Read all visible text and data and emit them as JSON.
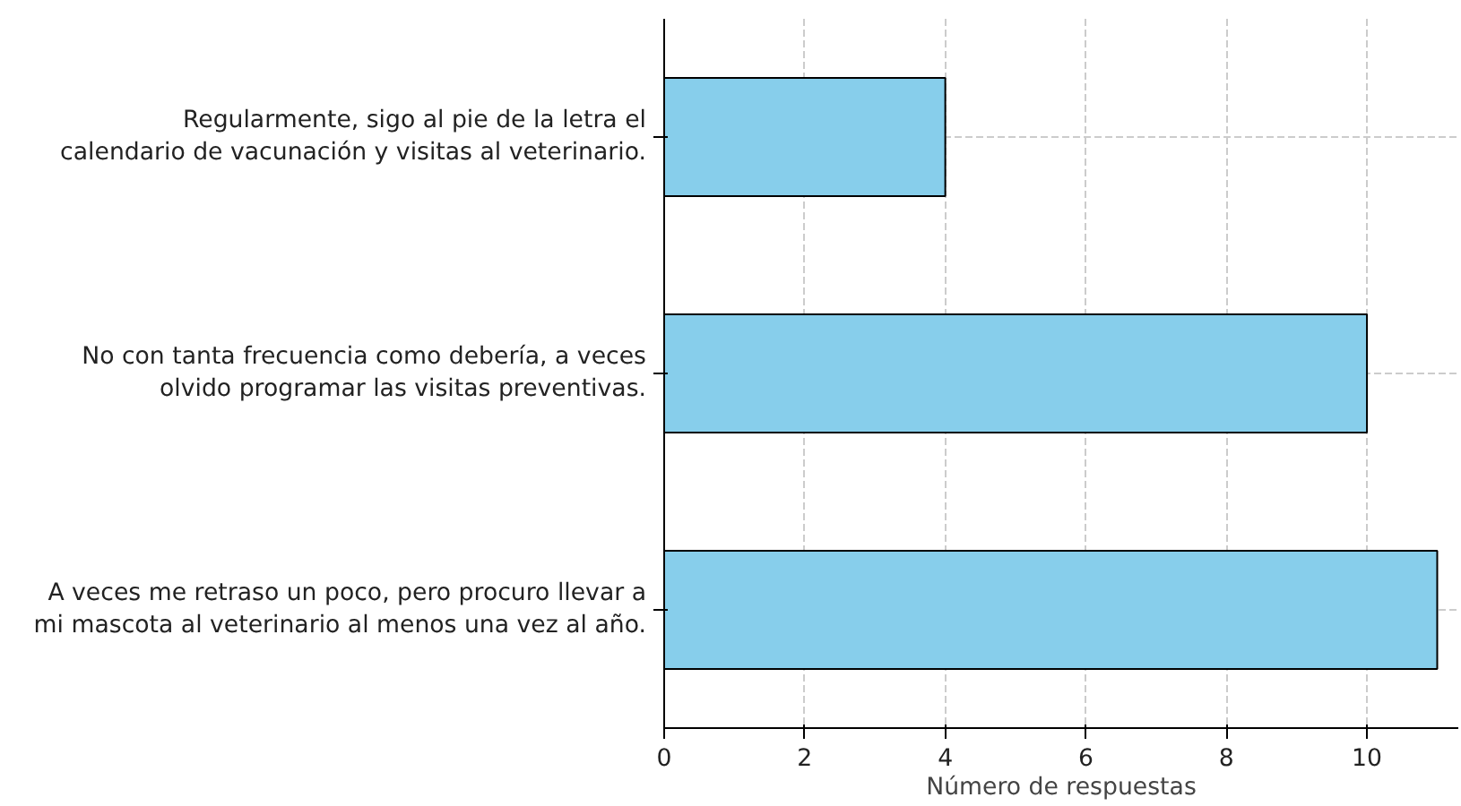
{
  "chart_data": {
    "type": "bar",
    "orientation": "horizontal",
    "xlabel": "Número de respuestas",
    "categories": [
      "Regularmente, sigo al pie de la letra el\ncalendario de vacunación y visitas al veterinario.",
      "No con tanta frecuencia como debería, a veces\nolvido programar las visitas preventivas.",
      "A veces me retraso un poco, pero procuro llevar a\nmi mascota al veterinario al menos una vez al año."
    ],
    "values": [
      4,
      10,
      11
    ],
    "color": "#87ceeb",
    "xlim": [
      0,
      11.3
    ],
    "xticks": [
      0,
      2,
      4,
      6,
      8,
      10
    ],
    "grid": true
  }
}
